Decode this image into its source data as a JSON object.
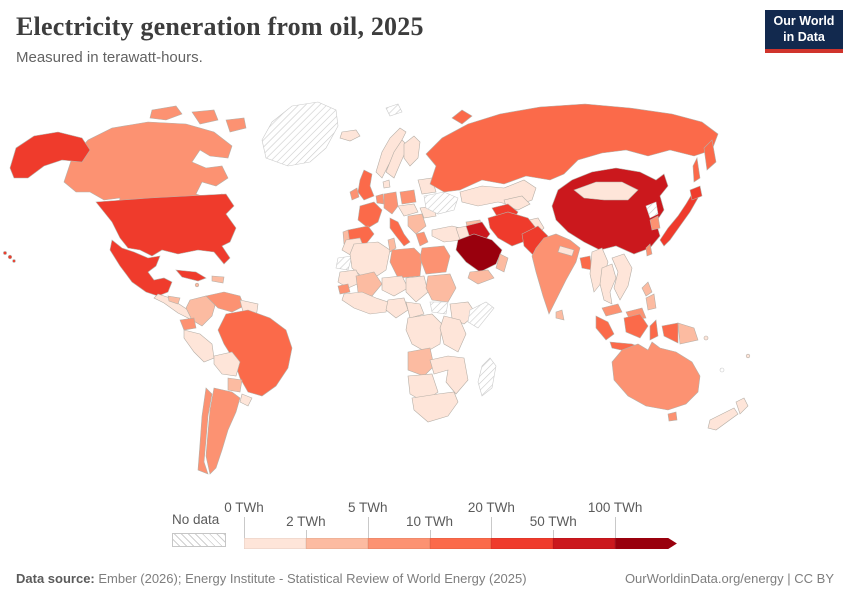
{
  "header": {
    "title": "Electricity generation from oil, 2025",
    "subtitle": "Measured in terawatt-hours.",
    "logo": {
      "line1": "Our World",
      "line2": "in Data"
    }
  },
  "legend": {
    "no_data_label": "No data"
  },
  "footer": {
    "source_label": "Data source:",
    "source_text": " Ember (2026); Energy Institute - Statistical Review of World Energy (2025)",
    "credit": "OurWorldinData.org/energy | CC BY"
  },
  "colors": {
    "logo_bg": "#12294e",
    "logo_accent": "#d0342c",
    "border": "#b6afa7",
    "no_data_hatch": "#cfcfcf"
  },
  "chart_data": {
    "type": "choropleth_map",
    "title": "Electricity generation from oil, 2025",
    "subtitle": "Measured in terawatt-hours.",
    "unit": "TWh",
    "bin_edges_twh": [
      0,
      2,
      5,
      10,
      20,
      50,
      100
    ],
    "bin_labels": [
      "0 TWh",
      "2 TWh",
      "5 TWh",
      "10 TWh",
      "20 TWh",
      "50 TWh",
      "100 TWh"
    ],
    "bin_colors": [
      "#fee5d9",
      "#fcbba1",
      "#fc9272",
      "#fb6a4a",
      "#ef3b2c",
      "#cb181d",
      "#99000d"
    ],
    "no_data_regions": [
      "greenland",
      "ukraine",
      "western-sahara",
      "south-sudan",
      "somalia",
      "madagascar",
      "north-korea",
      "svalbard",
      "new-caledonia"
    ],
    "countries": {
      "greenland": -1,
      "canada": 2,
      "canada-islands": 2,
      "alaska": 4,
      "united-states": 4,
      "hawaii": 4,
      "mexico": 4,
      "cuba": 4,
      "hispaniola": 1,
      "jamaica": 1,
      "central-america": 0,
      "honduras": 1,
      "colombia": 1,
      "venezuela": 2,
      "guyanas": 0,
      "ecuador": 2,
      "peru": 0,
      "bolivia": 0,
      "brazil": 3,
      "paraguay": 1,
      "uruguay": 0,
      "chile": 2,
      "argentina": 2,
      "iceland": 0,
      "united-kingdom": 3,
      "ireland": 2,
      "norway": 0,
      "sweden": 0,
      "finland": 0,
      "denmark": 0,
      "germany": 2,
      "benelux": 2,
      "france": 3,
      "spain": 3,
      "portugal": 1,
      "italy": 3,
      "poland": 2,
      "central-europe": 0,
      "balkans": 1,
      "greece": 2,
      "romania": 0,
      "baltics-belarus": 0,
      "ukraine": -1,
      "turkey": 0,
      "caucasus": 1,
      "russia": 3,
      "kamchatka": 3,
      "sakhalin": 3,
      "novaya-zemlya": 3,
      "svalbard": -1,
      "kazakhstan": 0,
      "uzbekistan": 0,
      "turkmenistan": 4,
      "afghanistan": 0,
      "saudi-arabia": 6,
      "iraq": 5,
      "iran": 4,
      "levant": 0,
      "yemen": 1,
      "oman": 1,
      "pakistan": 4,
      "india": 2,
      "nepal": 0,
      "bangladesh": 3,
      "sri-lanka": 1,
      "myanmar": 0,
      "thailand": 0,
      "indochina": 0,
      "malaysia": 2,
      "malaysia-borneo": 2,
      "indonesia-sumatra": 3,
      "indonesia-java": 3,
      "indonesia-borneo": 3,
      "sulawesi": 3,
      "indonesia-papua": 3,
      "papua-new-guinea": 1,
      "philippines": 1,
      "china": 5,
      "mongolia": 0,
      "north-korea": -1,
      "south-korea": 2,
      "japan": 4,
      "hokkaido": 4,
      "taiwan": 2,
      "morocco": 0,
      "western-sahara": -1,
      "algeria": 0,
      "tunisia": 1,
      "libya": 2,
      "egypt": 2,
      "mauritania": 0,
      "mali": 1,
      "senegal": 2,
      "west-africa": 0,
      "niger": 0,
      "chad": 0,
      "sudan": 1,
      "south-sudan": -1,
      "ethiopia": 0,
      "somalia": -1,
      "nigeria": 0,
      "central-africa": 0,
      "drc": 0,
      "east-africa": 0,
      "angola": 1,
      "southeast-africa": 0,
      "namibia-botswana": 0,
      "south-africa": 0,
      "madagascar": -1,
      "australia": 2,
      "tasmania": 2,
      "new-zealand-north": 0,
      "new-zealand-south": 0,
      "pacific-islands": 0,
      "new-caledonia": -1
    }
  }
}
